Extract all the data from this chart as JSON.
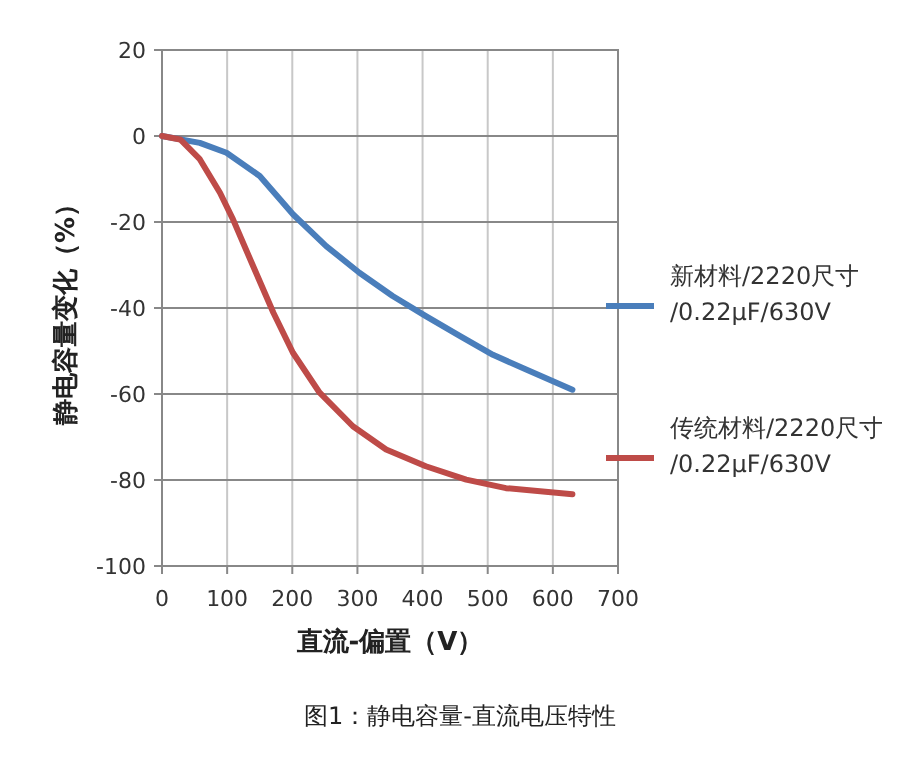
{
  "chart_data": {
    "type": "line",
    "xlabel": "直流-偏置（V）",
    "ylabel": "静电容量变化（%）",
    "annotations": [
      "图1：静电容量-直流电压特性"
    ],
    "xlim": [
      0,
      700
    ],
    "xticks": [
      0,
      100,
      200,
      300,
      400,
      500,
      600,
      700
    ],
    "ylim": [
      -100,
      20
    ],
    "yticks": [
      -100,
      -80,
      -60,
      -40,
      -20,
      0,
      20
    ],
    "grid": true,
    "legend": "right",
    "marker": "none",
    "line_style": "solid",
    "series": [
      {
        "name": "新材料/2220尺寸/0.22μF/630V",
        "color": "#4a7ebb",
        "x": [
          0,
          58,
          99,
          150,
          201,
          252,
          303,
          354,
          405,
          457,
          508,
          559,
          630
        ],
        "values": [
          0,
          -1.6,
          -3.9,
          -9.3,
          -18.2,
          -25.6,
          -31.8,
          -37.2,
          -41.9,
          -46.5,
          -50.9,
          -54.3,
          -59
        ]
      },
      {
        "name": "传统材料/2220尺寸/0.22μF/630V",
        "color": "#be4b48",
        "x": [
          0,
          28,
          58,
          89,
          109,
          140,
          171,
          201,
          242,
          293,
          344,
          405,
          467,
          528,
          630
        ],
        "values": [
          0,
          -0.8,
          -5.4,
          -13.2,
          -19.4,
          -30.3,
          -41.1,
          -50.4,
          -59.7,
          -67.5,
          -72.9,
          -76.8,
          -79.9,
          -81.9,
          -83.3
        ]
      }
    ]
  }
}
